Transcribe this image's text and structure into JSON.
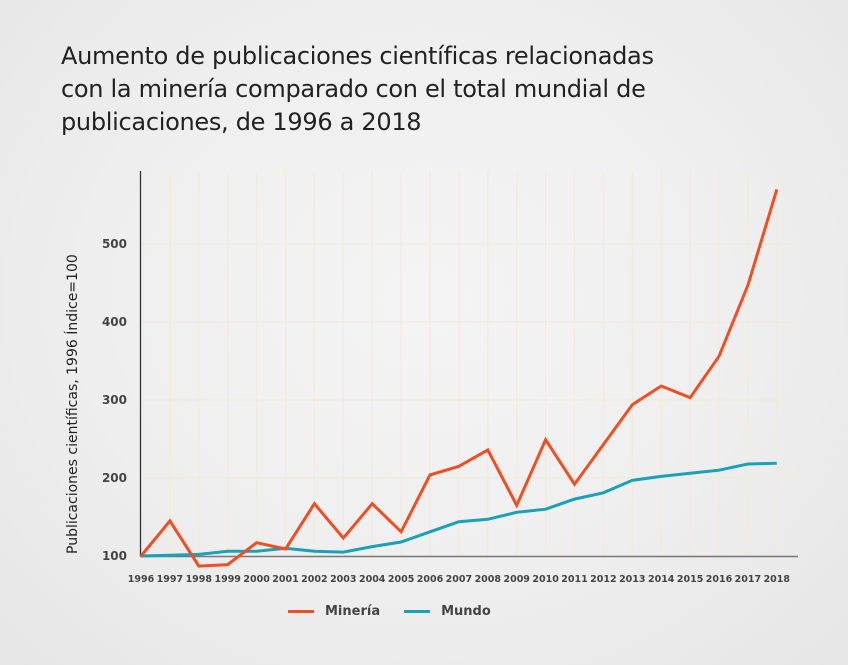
{
  "chart_data": {
    "type": "line",
    "title": "Aumento de publicaciones científicas relacionadas con la minería comparado con el total mundial de publicaciones, de 1996 a 2018",
    "title_lines": [
      "Aumento de publicaciones científicas relacionadas",
      "con la minería comparado con el total mundial de",
      "publicaciones, de 1996 a 2018"
    ],
    "xlabel": "",
    "ylabel": "Publicaciones científicas, 1996 Índice=100",
    "x": [
      1996,
      1997,
      1998,
      1999,
      2000,
      2001,
      2002,
      2003,
      2004,
      2005,
      2006,
      2007,
      2008,
      2009,
      2010,
      2011,
      2012,
      2013,
      2014,
      2015,
      2016,
      2017,
      2018
    ],
    "x_tick_labels": [
      "1996",
      "1997",
      "1998",
      "1999",
      "2000",
      "2001",
      "2002",
      "2003",
      "2004",
      "2005",
      "2006",
      "2007",
      "2008",
      "2009",
      "2010",
      "2011",
      "2012",
      "2013",
      "2014",
      "2015",
      "2016",
      "2017",
      "2018"
    ],
    "y_ticks": [
      100,
      200,
      300,
      400,
      500
    ],
    "y_tick_labels": [
      "100",
      "200",
      "300",
      "400",
      "500"
    ],
    "ylim": [
      100,
      595
    ],
    "grid": true,
    "legend_position": "bottom-center",
    "series": [
      {
        "name": "Minería",
        "color": "#f04e23",
        "values": [
          100,
          145,
          87,
          89,
          117,
          109,
          167,
          123,
          167,
          131,
          204,
          215,
          236,
          165,
          249,
          192,
          243,
          294,
          318,
          303,
          356,
          447,
          570
        ]
      },
      {
        "name": "Mundo",
        "color": "#1aa0b8",
        "values": [
          100,
          101,
          102,
          106,
          106,
          110,
          106,
          105,
          112,
          118,
          131,
          144,
          147,
          156,
          160,
          173,
          181,
          197,
          202,
          206,
          210,
          218,
          219
        ]
      }
    ]
  }
}
